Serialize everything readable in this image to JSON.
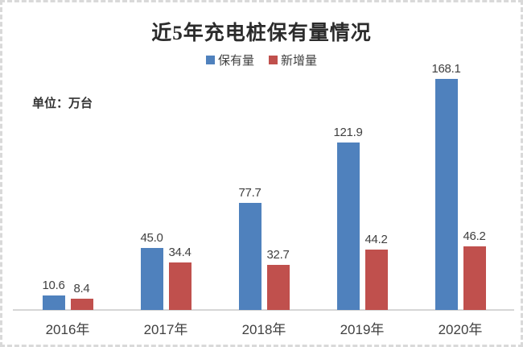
{
  "chart_data": {
    "type": "bar",
    "title": "近5年充电桩保有量情况",
    "unit_label": "单位：万台",
    "categories": [
      "2016年",
      "2017年",
      "2018年",
      "2019年",
      "2020年"
    ],
    "series": [
      {
        "name": "保有量",
        "color": "#4F81BD",
        "values": [
          10.6,
          45.0,
          77.7,
          121.9,
          168.1
        ],
        "labels": [
          "10.6",
          "45.0",
          "77.7",
          "121.9",
          "168.1"
        ]
      },
      {
        "name": "新增量",
        "color": "#C0504D",
        "values": [
          8.4,
          34.4,
          32.7,
          44.2,
          46.2
        ],
        "labels": [
          "8.4",
          "34.4",
          "32.7",
          "44.2",
          "46.2"
        ]
      }
    ],
    "ylim": [
      0,
      180
    ],
    "grid": false,
    "y_axis_visible": false,
    "legend_position": "top",
    "data_labels": true,
    "axis_line_color": "#d6d6d6",
    "frame_border_color": "#d9d9d9"
  }
}
